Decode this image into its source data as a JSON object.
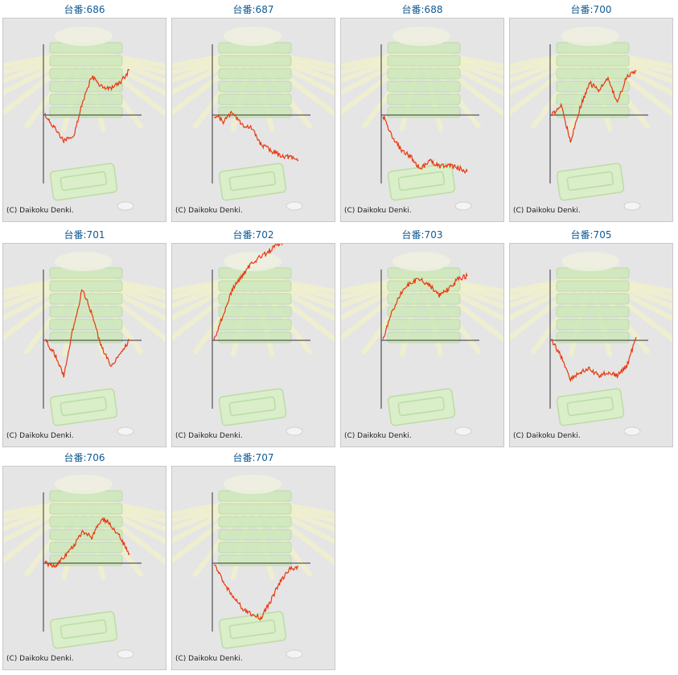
{
  "credit_text": "(C) Daikoku Denki.",
  "line_color": "#e8380d",
  "charts": [
    {
      "title": "台番:686",
      "trend": [
        0,
        -20,
        -40,
        -35,
        20,
        60,
        45,
        40,
        50,
        70
      ]
    },
    {
      "title": "台番:687",
      "trend": [
        0,
        -10,
        5,
        -15,
        -20,
        -45,
        -55,
        -62,
        -65,
        -70
      ]
    },
    {
      "title": "台番:688",
      "trend": [
        0,
        -35,
        -55,
        -65,
        -85,
        -70,
        -80,
        -78,
        -82,
        -88
      ]
    },
    {
      "title": "台番:700",
      "trend": [
        0,
        15,
        -40,
        10,
        50,
        40,
        55,
        20,
        60,
        70
      ]
    },
    {
      "title": "台番:701",
      "trend": [
        0,
        -20,
        -55,
        20,
        80,
        40,
        -10,
        -40,
        -20,
        0
      ]
    },
    {
      "title": "台番:702",
      "trend": [
        0,
        40,
        80,
        100,
        120,
        130,
        140,
        150,
        160,
        170
      ]
    },
    {
      "title": "台番:703",
      "trend": [
        0,
        45,
        75,
        90,
        95,
        85,
        70,
        80,
        95,
        100
      ]
    },
    {
      "title": "台番:705",
      "trend": [
        0,
        -25,
        -60,
        -50,
        -45,
        -55,
        -50,
        -55,
        -40,
        5
      ]
    },
    {
      "title": "台番:706",
      "trend": [
        0,
        -5,
        10,
        25,
        50,
        40,
        70,
        60,
        40,
        15
      ]
    },
    {
      "title": "台番:707",
      "trend": [
        0,
        -30,
        -50,
        -70,
        -80,
        -85,
        -60,
        -30,
        -10,
        -5
      ]
    }
  ]
}
